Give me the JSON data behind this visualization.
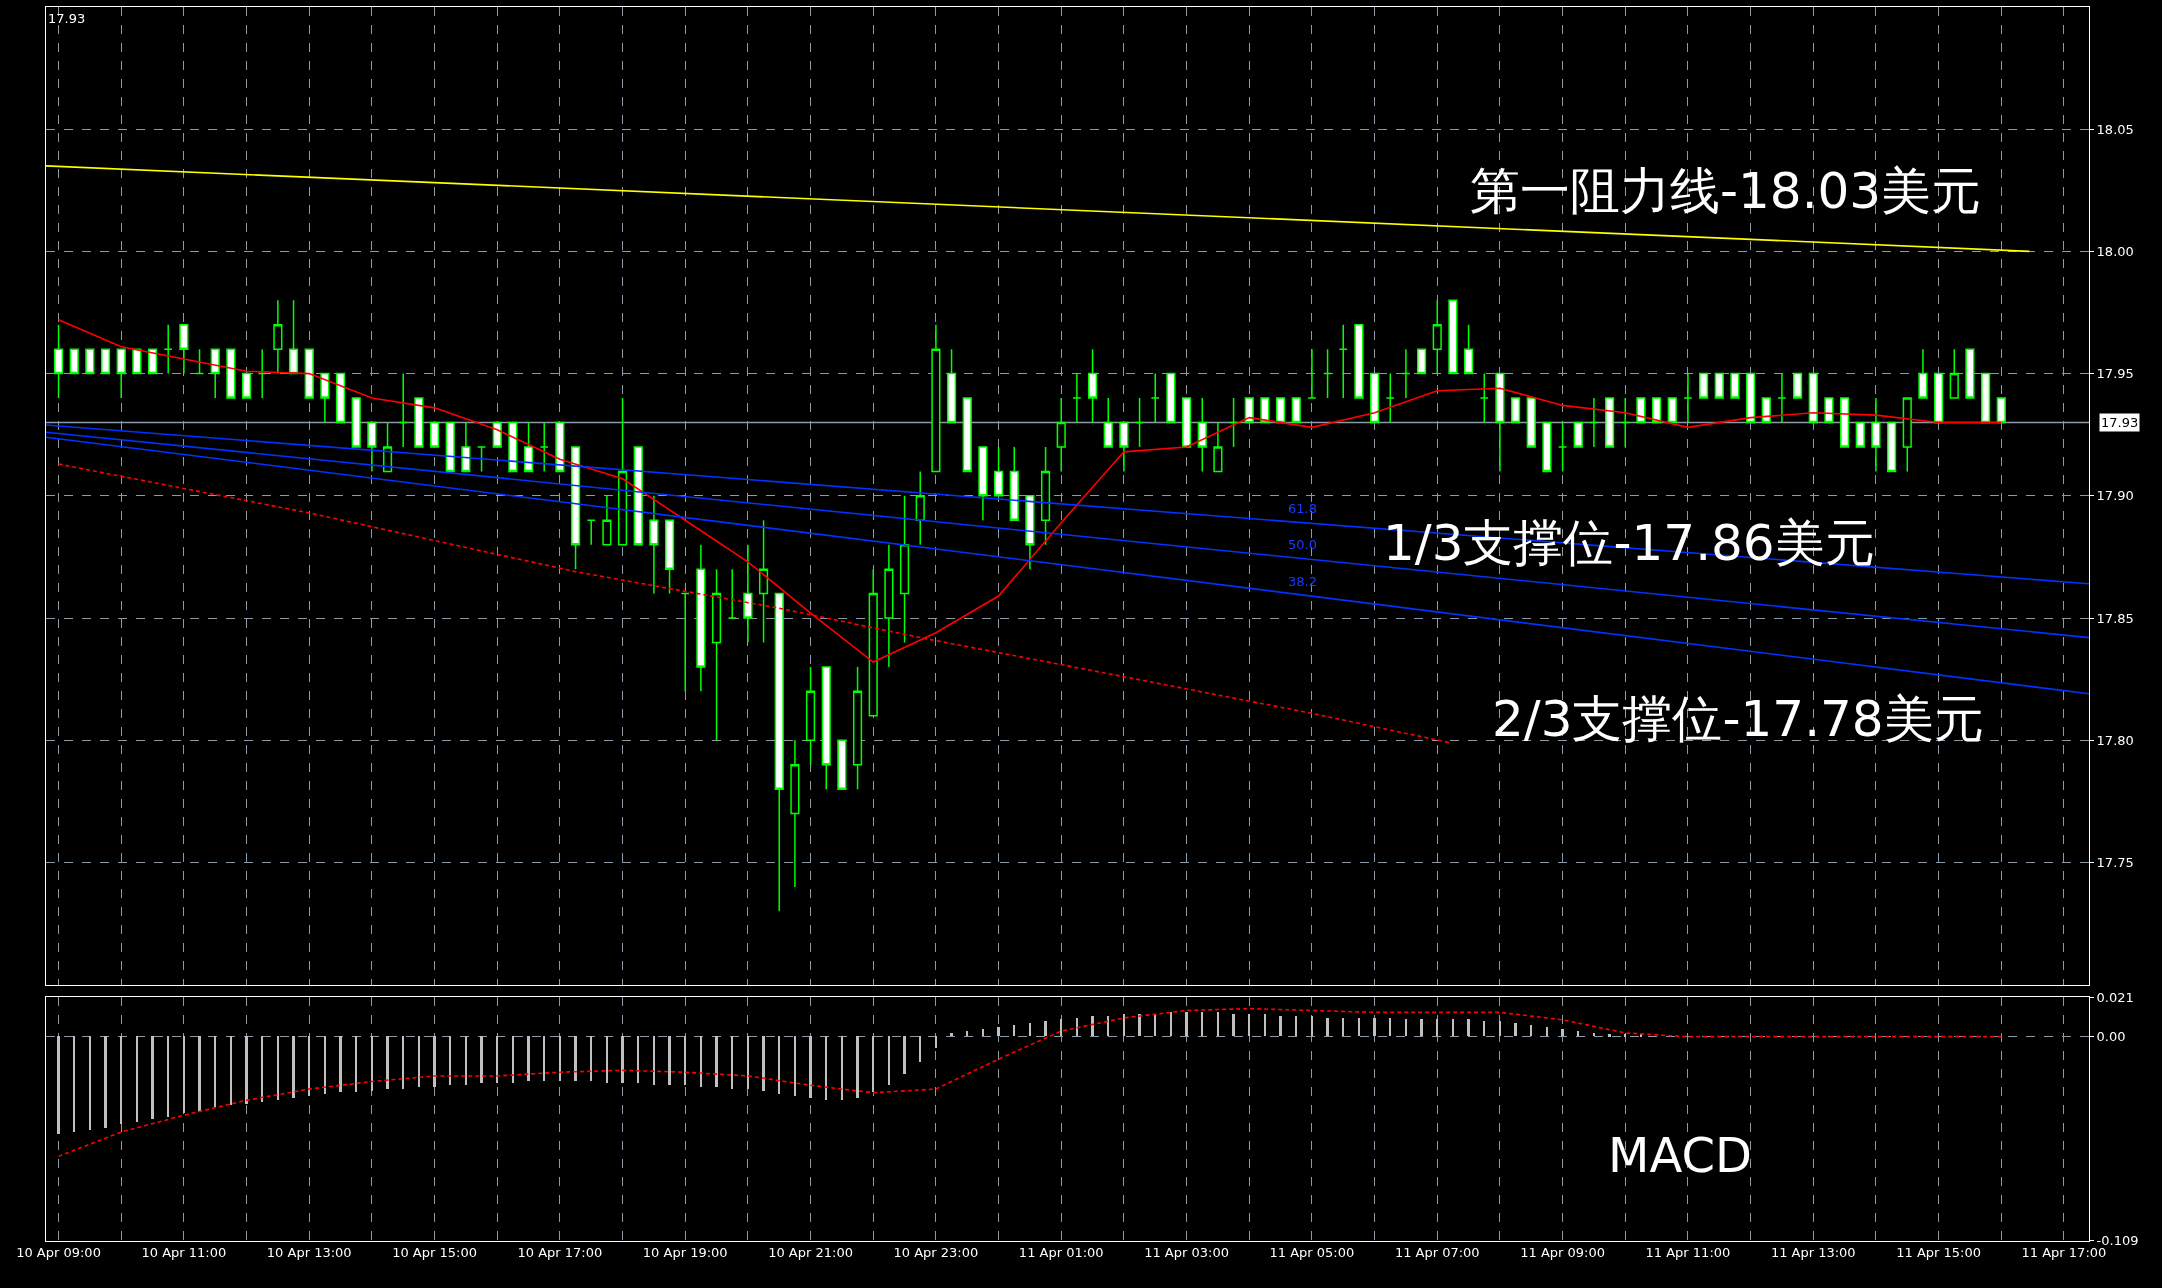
{
  "chart_data": [
    {
      "type": "candlestick",
      "color": "#00ff00",
      "x": [
        "--04-10T09:00",
        "--04-10T09:15",
        "--04-10T09:30",
        "--04-10T09:45",
        "--04-10T10:00",
        "--04-10T10:15",
        "--04-10T10:30",
        "--04-10T10:45",
        "--04-10T11:00",
        "--04-10T11:15",
        "--04-10T11:30",
        "--04-10T11:45",
        "--04-10T12:00",
        "--04-10T12:15",
        "--04-10T12:30",
        "--04-10T12:45",
        "--04-10T13:00",
        "--04-10T13:15",
        "--04-10T13:30",
        "--04-10T13:45",
        "--04-10T14:00",
        "--04-10T14:15",
        "--04-10T14:30",
        "--04-10T14:45",
        "--04-10T15:00",
        "--04-10T15:15",
        "--04-10T15:30",
        "--04-10T15:45",
        "--04-10T16:00",
        "--04-10T16:15",
        "--04-10T16:30",
        "--04-10T16:45",
        "--04-10T17:00",
        "--04-10T17:15",
        "--04-10T17:30",
        "--04-10T17:45",
        "--04-10T18:00",
        "--04-10T18:15",
        "--04-10T18:30",
        "--04-10T18:45",
        "--04-10T19:00",
        "--04-10T19:15",
        "--04-10T19:30",
        "--04-10T19:45",
        "--04-10T20:00",
        "--04-10T20:15",
        "--04-10T20:30",
        "--04-10T20:45",
        "--04-10T21:00",
        "--04-10T21:15",
        "--04-10T21:30",
        "--04-10T21:45",
        "--04-10T22:00",
        "--04-10T22:15",
        "--04-10T22:30",
        "--04-10T22:45",
        "--04-10T23:00",
        "--04-10T23:15",
        "--04-10T23:30",
        "--04-10T23:45",
        "--04-11T00:00",
        "--04-11T00:15",
        "--04-11T00:30",
        "--04-11T00:45",
        "--04-11T01:00",
        "--04-11T01:15",
        "--04-11T01:30",
        "--04-11T01:45",
        "--04-11T02:00",
        "--04-11T02:15",
        "--04-11T02:30",
        "--04-11T02:45",
        "--04-11T03:00",
        "--04-11T03:15",
        "--04-11T03:30",
        "--04-11T03:45",
        "--04-11T04:00",
        "--04-11T04:15",
        "--04-11T04:30",
        "--04-11T04:45",
        "--04-11T05:00",
        "--04-11T05:15",
        "--04-11T05:30",
        "--04-11T05:45",
        "--04-11T06:00",
        "--04-11T06:15",
        "--04-11T06:30",
        "--04-11T06:45",
        "--04-11T07:00",
        "--04-11T07:15",
        "--04-11T07:30",
        "--04-11T07:45",
        "--04-11T08:00",
        "--04-11T08:15",
        "--04-11T08:30",
        "--04-11T08:45",
        "--04-11T09:00",
        "--04-11T09:15",
        "--04-11T09:30",
        "--04-11T09:45",
        "--04-11T10:00",
        "--04-11T10:15",
        "--04-11T10:30",
        "--04-11T10:45",
        "--04-11T11:00",
        "--04-11T11:15",
        "--04-11T11:30",
        "--04-11T11:45",
        "--04-11T12:00",
        "--04-11T12:15",
        "--04-11T12:30",
        "--04-11T12:45",
        "--04-11T13:00",
        "--04-11T13:15",
        "--04-11T13:30",
        "--04-11T13:45",
        "--04-11T14:00",
        "--04-11T14:15",
        "--04-11T14:30",
        "--04-11T14:45",
        "--04-11T15:00",
        "--04-11T15:15",
        "--04-11T15:30",
        "--04-11T15:45",
        "--04-11T16:00"
      ],
      "ohlc": [
        [
          17.96,
          17.97,
          17.94,
          17.95
        ],
        [
          17.96,
          17.96,
          17.95,
          17.95
        ],
        [
          17.96,
          17.96,
          17.95,
          17.95
        ],
        [
          17.96,
          17.96,
          17.95,
          17.95
        ],
        [
          17.96,
          17.96,
          17.94,
          17.95
        ],
        [
          17.96,
          17.96,
          17.95,
          17.95
        ],
        [
          17.96,
          17.96,
          17.95,
          17.95
        ],
        [
          17.96,
          17.97,
          17.95,
          17.96
        ],
        [
          17.97,
          17.97,
          17.95,
          17.96
        ],
        [
          17.95,
          17.96,
          17.95,
          17.95
        ],
        [
          17.96,
          17.96,
          17.94,
          17.95
        ],
        [
          17.96,
          17.96,
          17.94,
          17.94
        ],
        [
          17.95,
          17.95,
          17.94,
          17.94
        ],
        [
          17.95,
          17.96,
          17.94,
          17.95
        ],
        [
          17.96,
          17.98,
          17.95,
          17.97
        ],
        [
          17.96,
          17.98,
          17.95,
          17.95
        ],
        [
          17.96,
          17.96,
          17.94,
          17.94
        ],
        [
          17.95,
          17.95,
          17.93,
          17.94
        ],
        [
          17.95,
          17.95,
          17.93,
          17.93
        ],
        [
          17.94,
          17.94,
          17.92,
          17.92
        ],
        [
          17.93,
          17.93,
          17.91,
          17.92
        ],
        [
          17.91,
          17.93,
          17.91,
          17.92
        ],
        [
          17.93,
          17.95,
          17.92,
          17.93
        ],
        [
          17.94,
          17.94,
          17.92,
          17.92
        ],
        [
          17.93,
          17.93,
          17.92,
          17.92
        ],
        [
          17.93,
          17.93,
          17.91,
          17.91
        ],
        [
          17.92,
          17.93,
          17.91,
          17.91
        ],
        [
          17.92,
          17.92,
          17.91,
          17.92
        ],
        [
          17.93,
          17.93,
          17.92,
          17.92
        ],
        [
          17.93,
          17.93,
          17.91,
          17.91
        ],
        [
          17.92,
          17.93,
          17.91,
          17.91
        ],
        [
          17.92,
          17.93,
          17.91,
          17.92
        ],
        [
          17.93,
          17.93,
          17.91,
          17.91
        ],
        [
          17.92,
          17.92,
          17.87,
          17.88
        ],
        [
          17.89,
          17.89,
          17.88,
          17.89
        ],
        [
          17.88,
          17.9,
          17.88,
          17.89
        ],
        [
          17.88,
          17.94,
          17.88,
          17.91
        ],
        [
          17.92,
          17.92,
          17.88,
          17.88
        ],
        [
          17.89,
          17.9,
          17.86,
          17.88
        ],
        [
          17.89,
          17.89,
          17.86,
          17.87
        ],
        [
          17.86,
          17.86,
          17.82,
          17.86
        ],
        [
          17.87,
          17.88,
          17.82,
          17.83
        ],
        [
          17.84,
          17.87,
          17.8,
          17.86
        ],
        [
          17.85,
          17.87,
          17.85,
          17.85
        ],
        [
          17.86,
          17.88,
          17.84,
          17.85
        ],
        [
          17.86,
          17.89,
          17.84,
          17.87
        ],
        [
          17.86,
          17.86,
          17.73,
          17.78
        ],
        [
          17.77,
          17.8,
          17.74,
          17.79
        ],
        [
          17.8,
          17.83,
          17.79,
          17.82
        ],
        [
          17.83,
          17.83,
          17.78,
          17.79
        ],
        [
          17.8,
          17.8,
          17.78,
          17.78
        ],
        [
          17.79,
          17.83,
          17.78,
          17.82
        ],
        [
          17.81,
          17.87,
          17.81,
          17.86
        ],
        [
          17.85,
          17.88,
          17.83,
          17.87
        ],
        [
          17.86,
          17.9,
          17.84,
          17.88
        ],
        [
          17.89,
          17.91,
          17.88,
          17.9
        ],
        [
          17.91,
          17.97,
          17.91,
          17.96
        ],
        [
          17.95,
          17.96,
          17.93,
          17.93
        ],
        [
          17.94,
          17.94,
          17.91,
          17.91
        ],
        [
          17.92,
          17.92,
          17.89,
          17.9
        ],
        [
          17.91,
          17.92,
          17.9,
          17.9
        ],
        [
          17.91,
          17.92,
          17.89,
          17.89
        ],
        [
          17.9,
          17.9,
          17.87,
          17.88
        ],
        [
          17.89,
          17.92,
          17.88,
          17.91
        ],
        [
          17.92,
          17.94,
          17.91,
          17.93
        ],
        [
          17.94,
          17.95,
          17.93,
          17.94
        ],
        [
          17.95,
          17.96,
          17.93,
          17.94
        ],
        [
          17.93,
          17.94,
          17.92,
          17.92
        ],
        [
          17.93,
          17.93,
          17.91,
          17.92
        ],
        [
          17.93,
          17.94,
          17.92,
          17.93
        ],
        [
          17.94,
          17.95,
          17.93,
          17.94
        ],
        [
          17.95,
          17.95,
          17.93,
          17.93
        ],
        [
          17.94,
          17.94,
          17.92,
          17.92
        ],
        [
          17.93,
          17.94,
          17.91,
          17.92
        ],
        [
          17.91,
          17.93,
          17.91,
          17.92
        ],
        [
          17.93,
          17.94,
          17.92,
          17.93
        ],
        [
          17.94,
          17.94,
          17.93,
          17.93
        ],
        [
          17.94,
          17.94,
          17.93,
          17.93
        ],
        [
          17.94,
          17.94,
          17.93,
          17.93
        ],
        [
          17.94,
          17.94,
          17.93,
          17.93
        ],
        [
          17.94,
          17.96,
          17.94,
          17.94
        ],
        [
          17.95,
          17.96,
          17.94,
          17.95
        ],
        [
          17.96,
          17.97,
          17.94,
          17.96
        ],
        [
          17.97,
          17.97,
          17.94,
          17.94
        ],
        [
          17.95,
          17.95,
          17.93,
          17.93
        ],
        [
          17.94,
          17.95,
          17.93,
          17.94
        ],
        [
          17.95,
          17.96,
          17.94,
          17.95
        ],
        [
          17.96,
          17.96,
          17.95,
          17.95
        ],
        [
          17.96,
          17.98,
          17.95,
          17.97
        ],
        [
          17.98,
          17.98,
          17.95,
          17.95
        ],
        [
          17.96,
          17.97,
          17.95,
          17.95
        ],
        [
          17.94,
          17.95,
          17.93,
          17.94
        ],
        [
          17.95,
          17.95,
          17.91,
          17.93
        ],
        [
          17.94,
          17.94,
          17.93,
          17.93
        ],
        [
          17.94,
          17.94,
          17.92,
          17.92
        ],
        [
          17.93,
          17.93,
          17.91,
          17.91
        ],
        [
          17.92,
          17.93,
          17.91,
          17.92
        ],
        [
          17.93,
          17.93,
          17.92,
          17.92
        ],
        [
          17.93,
          17.94,
          17.92,
          17.93
        ],
        [
          17.94,
          17.94,
          17.92,
          17.92
        ],
        [
          17.93,
          17.94,
          17.92,
          17.93
        ],
        [
          17.94,
          17.94,
          17.93,
          17.93
        ],
        [
          17.94,
          17.94,
          17.93,
          17.93
        ],
        [
          17.94,
          17.94,
          17.93,
          17.93
        ],
        [
          17.94,
          17.95,
          17.93,
          17.94
        ],
        [
          17.95,
          17.95,
          17.94,
          17.94
        ],
        [
          17.95,
          17.95,
          17.94,
          17.94
        ],
        [
          17.95,
          17.95,
          17.94,
          17.94
        ],
        [
          17.95,
          17.95,
          17.93,
          17.93
        ],
        [
          17.94,
          17.94,
          17.93,
          17.93
        ],
        [
          17.94,
          17.95,
          17.93,
          17.94
        ],
        [
          17.95,
          17.95,
          17.94,
          17.94
        ],
        [
          17.95,
          17.95,
          17.93,
          17.93
        ],
        [
          17.94,
          17.94,
          17.93,
          17.93
        ],
        [
          17.94,
          17.94,
          17.92,
          17.92
        ],
        [
          17.93,
          17.93,
          17.92,
          17.92
        ],
        [
          17.93,
          17.94,
          17.91,
          17.92
        ],
        [
          17.93,
          17.93,
          17.91,
          17.91
        ],
        [
          17.92,
          17.94,
          17.91,
          17.94
        ],
        [
          17.95,
          17.96,
          17.94,
          17.94
        ],
        [
          17.95,
          17.95,
          17.93,
          17.93
        ],
        [
          17.94,
          17.96,
          17.94,
          17.95
        ],
        [
          17.96,
          17.96,
          17.94,
          17.94
        ],
        [
          17.95,
          17.95,
          17.93,
          17.93
        ],
        [
          17.94,
          17.94,
          17.93,
          17.93
        ]
      ],
      "series": [
        {
          "type": "line",
          "color": "#ff0000",
          "line_style": "solid",
          "x": [
            "--04-10T09:00",
            "--04-10T10:00",
            "--04-10T11:00",
            "--04-10T12:00",
            "--04-10T13:00",
            "--04-10T14:00",
            "--04-10T15:00",
            "--04-10T16:00",
            "--04-10T17:00",
            "--04-10T18:00",
            "--04-10T19:00",
            "--04-10T20:00",
            "--04-10T21:00",
            "--04-10T22:00",
            "--04-10T23:00",
            "--04-11T00:00",
            "--04-11T01:00",
            "--04-11T02:00",
            "--04-11T03:00",
            "--04-11T04:00",
            "--04-11T05:00",
            "--04-11T06:00",
            "--04-11T07:00",
            "--04-11T08:00",
            "--04-11T09:00",
            "--04-11T10:00",
            "--04-11T11:00",
            "--04-11T12:00",
            "--04-11T13:00",
            "--04-11T14:00",
            "--04-11T15:00",
            "--04-11T16:00"
          ],
          "values": [
            17.972,
            17.961,
            17.956,
            17.951,
            17.95,
            17.94,
            17.936,
            17.927,
            17.915,
            17.907,
            17.89,
            17.873,
            17.852,
            17.832,
            17.844,
            17.859,
            17.889,
            17.918,
            17.92,
            17.932,
            17.928,
            17.934,
            17.943,
            17.944,
            17.937,
            17.934,
            17.928,
            17.932,
            17.934,
            17.933,
            17.93,
            17.93
          ]
        },
        {
          "type": "line",
          "color": "#ff0000",
          "line_style": "dashed",
          "x": [
            "--04-10T09:00",
            "--04-10T13:00",
            "--04-10T17:15",
            "--04-10T20:30",
            "--04-10T22:45",
            "--04-11T02:00",
            "--04-11T05:00",
            "--04-11T07:12"
          ],
          "values": [
            17.913,
            17.893,
            17.869,
            17.854,
            17.842,
            17.826,
            17.811,
            17.799
          ]
        },
        {
          "type": "line",
          "color": "#ffff00",
          "line_style": "solid",
          "x": [
            "--04-10T08:48",
            "--04-11T16:27"
          ],
          "values": [
            18.035,
            18.0
          ]
        },
        {
          "type": "line",
          "color": "#0033ff",
          "line_style": "solid",
          "x": [
            "--04-10T08:48",
            "--04-11T17:24"
          ],
          "values": [
            17.929,
            17.864
          ]
        },
        {
          "type": "line",
          "color": "#0033ff",
          "line_style": "solid",
          "x": [
            "--04-10T08:48",
            "--04-11T17:24"
          ],
          "values": [
            17.926,
            17.842
          ]
        },
        {
          "type": "line",
          "color": "#0033ff",
          "line_style": "solid",
          "x": [
            "--04-10T08:48",
            "--04-11T17:24"
          ],
          "values": [
            17.924,
            17.819
          ]
        }
      ],
      "ref_lines": [
        {
          "axis": "y",
          "value": 17.93,
          "label": "17.93",
          "color": "#8c9aa8"
        }
      ],
      "annotations": [
        "17.93",
        "第一阻力线-18.03美元",
        "1/3支撑位-17.86美元",
        "2/3支撑位-17.78美元",
        "61.8",
        "50.0",
        "38.2"
      ],
      "xlim": [
        "--04-10T08:48",
        "--04-11T17:24"
      ],
      "xticks": [
        {
          "value": "--04-10T09:00",
          "label": "10 Apr 09:00"
        },
        {
          "value": "--04-10T10:00",
          "label": null
        },
        {
          "value": "--04-10T11:00",
          "label": "10 Apr 11:00"
        },
        {
          "value": "--04-10T12:00",
          "label": null
        },
        {
          "value": "--04-10T13:00",
          "label": "10 Apr 13:00"
        },
        {
          "value": "--04-10T14:00",
          "label": null
        },
        {
          "value": "--04-10T15:00",
          "label": "10 Apr 15:00"
        },
        {
          "value": "--04-10T16:00",
          "label": null
        },
        {
          "value": "--04-10T17:00",
          "label": "10 Apr 17:00"
        },
        {
          "value": "--04-10T18:00",
          "label": null
        },
        {
          "value": "--04-10T19:00",
          "label": "10 Apr 19:00"
        },
        {
          "value": "--04-10T20:00",
          "label": null
        },
        {
          "value": "--04-10T21:00",
          "label": "10 Apr 21:00"
        },
        {
          "value": "--04-10T22:00",
          "label": null
        },
        {
          "value": "--04-10T23:00",
          "label": "10 Apr 23:00"
        },
        {
          "value": "--04-11T00:00",
          "label": null
        },
        {
          "value": "--04-11T01:00",
          "label": "11 Apr 01:00"
        },
        {
          "value": "--04-11T02:00",
          "label": null
        },
        {
          "value": "--04-11T03:00",
          "label": "11 Apr 03:00"
        },
        {
          "value": "--04-11T04:00",
          "label": null
        },
        {
          "value": "--04-11T05:00",
          "label": "11 Apr 05:00"
        },
        {
          "value": "--04-11T06:00",
          "label": null
        },
        {
          "value": "--04-11T07:00",
          "label": "11 Apr 07:00"
        },
        {
          "value": "--04-11T08:00",
          "label": null
        },
        {
          "value": "--04-11T09:00",
          "label": "11 Apr 09:00"
        },
        {
          "value": "--04-11T10:00",
          "label": null
        },
        {
          "value": "--04-11T11:00",
          "label": "11 Apr 11:00"
        },
        {
          "value": "--04-11T12:00",
          "label": null
        },
        {
          "value": "--04-11T13:00",
          "label": "11 Apr 13:00"
        },
        {
          "value": "--04-11T14:00",
          "label": null
        },
        {
          "value": "--04-11T15:00",
          "label": "11 Apr 15:00"
        },
        {
          "value": "--04-11T16:00",
          "label": null
        },
        {
          "value": "--04-11T17:00",
          "label": "11 Apr 17:00"
        }
      ],
      "ylim": [
        17.7,
        18.1
      ],
      "yticks": [
        {
          "value": 17.75,
          "label": "17.75"
        },
        {
          "value": 17.8,
          "label": "17.80"
        },
        {
          "value": 17.85,
          "label": "17.85"
        },
        {
          "value": 17.9,
          "label": "17.90"
        },
        {
          "value": 17.95,
          "label": "17.95"
        },
        {
          "value": 18.0,
          "label": "18.00"
        },
        {
          "value": 18.05,
          "label": "18.05"
        }
      ],
      "grid": true,
      "tick_labels": "y"
    },
    {
      "type": "bar",
      "x": [
        "--04-10T09:00",
        "--04-10T09:15",
        "--04-10T09:30",
        "--04-10T09:45",
        "--04-10T10:00",
        "--04-10T10:15",
        "--04-10T10:30",
        "--04-10T10:45",
        "--04-10T11:00",
        "--04-10T11:15",
        "--04-10T11:30",
        "--04-10T11:45",
        "--04-10T12:00",
        "--04-10T12:15",
        "--04-10T12:30",
        "--04-10T12:45",
        "--04-10T13:00",
        "--04-10T13:15",
        "--04-10T13:30",
        "--04-10T13:45",
        "--04-10T14:00",
        "--04-10T14:15",
        "--04-10T14:30",
        "--04-10T14:45",
        "--04-10T15:00",
        "--04-10T15:15",
        "--04-10T15:30",
        "--04-10T15:45",
        "--04-10T16:00",
        "--04-10T16:15",
        "--04-10T16:30",
        "--04-10T16:45",
        "--04-10T17:00",
        "--04-10T17:15",
        "--04-10T17:30",
        "--04-10T17:45",
        "--04-10T18:00",
        "--04-10T18:15",
        "--04-10T18:30",
        "--04-10T18:45",
        "--04-10T19:00",
        "--04-10T19:15",
        "--04-10T19:30",
        "--04-10T19:45",
        "--04-10T20:00",
        "--04-10T20:15",
        "--04-10T20:30",
        "--04-10T20:45",
        "--04-10T21:00",
        "--04-10T21:15",
        "--04-10T21:30",
        "--04-10T21:45",
        "--04-10T22:00",
        "--04-10T22:15",
        "--04-10T22:30",
        "--04-10T22:45",
        "--04-10T23:00",
        "--04-10T23:15",
        "--04-10T23:30",
        "--04-10T23:45",
        "--04-11T00:00",
        "--04-11T00:15",
        "--04-11T00:30",
        "--04-11T00:45",
        "--04-11T01:00",
        "--04-11T01:15",
        "--04-11T01:30",
        "--04-11T01:45",
        "--04-11T02:00",
        "--04-11T02:15",
        "--04-11T02:30",
        "--04-11T02:45",
        "--04-11T03:00",
        "--04-11T03:15",
        "--04-11T03:30",
        "--04-11T03:45",
        "--04-11T04:00",
        "--04-11T04:15",
        "--04-11T04:30",
        "--04-11T04:45",
        "--04-11T05:00",
        "--04-11T05:15",
        "--04-11T05:30",
        "--04-11T05:45",
        "--04-11T06:00",
        "--04-11T06:15",
        "--04-11T06:30",
        "--04-11T06:45",
        "--04-11T07:00",
        "--04-11T07:15",
        "--04-11T07:30",
        "--04-11T07:45",
        "--04-11T08:00",
        "--04-11T08:15",
        "--04-11T08:30",
        "--04-11T08:45",
        "--04-11T09:00",
        "--04-11T09:15",
        "--04-11T09:30",
        "--04-11T09:45",
        "--04-11T10:00",
        "--04-11T10:15",
        "--04-11T10:30",
        "--04-11T10:45",
        "--04-11T11:00",
        "--04-11T11:15",
        "--04-11T11:30",
        "--04-11T11:45",
        "--04-11T12:00",
        "--04-11T12:15",
        "--04-11T12:30",
        "--04-11T12:45",
        "--04-11T13:00",
        "--04-11T13:15",
        "--04-11T13:30",
        "--04-11T13:45",
        "--04-11T14:00",
        "--04-11T14:15",
        "--04-11T14:30",
        "--04-11T14:45",
        "--04-11T15:00",
        "--04-11T15:15",
        "--04-11T15:30",
        "--04-11T15:45",
        "--04-11T16:00"
      ],
      "series": [
        {
          "type": "bar",
          "color": "#c0c0c0",
          "values": [
            -0.052,
            -0.051,
            -0.05,
            -0.049,
            -0.047,
            -0.046,
            -0.044,
            -0.043,
            -0.041,
            -0.04,
            -0.038,
            -0.037,
            -0.036,
            -0.035,
            -0.034,
            -0.033,
            -0.032,
            -0.031,
            -0.03,
            -0.03,
            -0.029,
            -0.028,
            -0.028,
            -0.027,
            -0.027,
            -0.026,
            -0.026,
            -0.025,
            -0.025,
            -0.025,
            -0.024,
            -0.024,
            -0.024,
            -0.024,
            -0.024,
            -0.025,
            -0.025,
            -0.025,
            -0.026,
            -0.026,
            -0.026,
            -0.027,
            -0.027,
            -0.028,
            -0.028,
            -0.029,
            -0.031,
            -0.032,
            -0.033,
            -0.034,
            -0.034,
            -0.033,
            -0.03,
            -0.026,
            -0.02,
            -0.014,
            -0.006,
            0.002,
            0.003,
            0.004,
            0.005,
            0.006,
            0.007,
            0.008,
            0.009,
            0.01,
            0.011,
            0.011,
            0.012,
            0.012,
            0.012,
            0.013,
            0.013,
            0.013,
            0.013,
            0.012,
            0.012,
            0.012,
            0.011,
            0.011,
            0.011,
            0.01,
            0.01,
            0.01,
            0.01,
            0.01,
            0.009,
            0.009,
            0.009,
            0.009,
            0.009,
            0.008,
            0.008,
            0.007,
            0.006,
            0.005,
            0.004,
            0.003,
            0.002,
            0.001,
            0.001,
            0.001,
            0,
            0,
            0,
            0,
            0,
            0,
            0,
            0,
            0,
            0,
            0,
            0,
            0,
            0,
            0,
            0,
            0,
            0,
            0,
            0,
            0,
            0,
            0
          ]
        },
        {
          "type": "line",
          "color": "#ff0000",
          "line_style": "dashed",
          "x": [
            "--04-10T09:00",
            "--04-10T10:00",
            "--04-10T11:00",
            "--04-10T12:00",
            "--04-10T13:00",
            "--04-10T14:00",
            "--04-10T15:00",
            "--04-10T16:00",
            "--04-10T17:00",
            "--04-10T18:00",
            "--04-10T19:00",
            "--04-10T20:00",
            "--04-10T21:00",
            "--04-10T22:00",
            "--04-10T23:00",
            "--04-11T00:00",
            "--04-11T01:00",
            "--04-11T02:00",
            "--04-11T03:00",
            "--04-11T04:00",
            "--04-11T05:00",
            "--04-11T06:00",
            "--04-11T07:00",
            "--04-11T08:00",
            "--04-11T09:00",
            "--04-11T10:00",
            "--04-11T11:00",
            "--04-11T12:00",
            "--04-11T13:00",
            "--04-11T14:00",
            "--04-11T15:00",
            "--04-11T16:00"
          ],
          "values": [
            -0.064,
            -0.051,
            -0.042,
            -0.034,
            -0.028,
            -0.024,
            -0.021,
            -0.021,
            -0.019,
            -0.018,
            -0.019,
            -0.021,
            -0.026,
            -0.03,
            -0.028,
            -0.012,
            0.003,
            0.01,
            0.014,
            0.015,
            0.014,
            0.013,
            0.013,
            0.013,
            0.009,
            0.002,
            0,
            0,
            0,
            0,
            0,
            0
          ]
        }
      ],
      "annotations": [
        "MACD"
      ],
      "xlim": [
        "--04-10T08:48",
        "--04-11T17:24"
      ],
      "xticks": [
        {
          "value": "--04-10T09:00",
          "label": "10 Apr 09:00"
        },
        {
          "value": "--04-10T10:00",
          "label": null
        },
        {
          "value": "--04-10T11:00",
          "label": "10 Apr 11:00"
        },
        {
          "value": "--04-10T12:00",
          "label": null
        },
        {
          "value": "--04-10T13:00",
          "label": "10 Apr 13:00"
        },
        {
          "value": "--04-10T14:00",
          "label": null
        },
        {
          "value": "--04-10T15:00",
          "label": "10 Apr 15:00"
        },
        {
          "value": "--04-10T16:00",
          "label": null
        },
        {
          "value": "--04-10T17:00",
          "label": "10 Apr 17:00"
        },
        {
          "value": "--04-10T18:00",
          "label": null
        },
        {
          "value": "--04-10T19:00",
          "label": "10 Apr 19:00"
        },
        {
          "value": "--04-10T20:00",
          "label": null
        },
        {
          "value": "--04-10T21:00",
          "label": "10 Apr 21:00"
        },
        {
          "value": "--04-10T22:00",
          "label": null
        },
        {
          "value": "--04-10T23:00",
          "label": "10 Apr 23:00"
        },
        {
          "value": "--04-11T00:00",
          "label": null
        },
        {
          "value": "--04-11T01:00",
          "label": "11 Apr 01:00"
        },
        {
          "value": "--04-11T02:00",
          "label": null
        },
        {
          "value": "--04-11T03:00",
          "label": "11 Apr 03:00"
        },
        {
          "value": "--04-11T04:00",
          "label": null
        },
        {
          "value": "--04-11T05:00",
          "label": "11 Apr 05:00"
        },
        {
          "value": "--04-11T06:00",
          "label": null
        },
        {
          "value": "--04-11T07:00",
          "label": "11 Apr 07:00"
        },
        {
          "value": "--04-11T08:00",
          "label": null
        },
        {
          "value": "--04-11T09:00",
          "label": "11 Apr 09:00"
        },
        {
          "value": "--04-11T10:00",
          "label": null
        },
        {
          "value": "--04-11T11:00",
          "label": "11 Apr 11:00"
        },
        {
          "value": "--04-11T12:00",
          "label": null
        },
        {
          "value": "--04-11T13:00",
          "label": "11 Apr 13:00"
        },
        {
          "value": "--04-11T14:00",
          "label": null
        },
        {
          "value": "--04-11T15:00",
          "label": "11 Apr 15:00"
        },
        {
          "value": "--04-11T16:00",
          "label": null
        },
        {
          "value": "--04-11T17:00",
          "label": "11 Apr 17:00"
        }
      ],
      "ylim": [
        -0.109,
        0.021
      ],
      "yticks": [
        {
          "value": -0.109,
          "label": "-0.109"
        },
        {
          "value": 0,
          "label": "0.00"
        },
        {
          "value": 0.021,
          "label": "0.021"
        }
      ],
      "grid": true
    }
  ]
}
